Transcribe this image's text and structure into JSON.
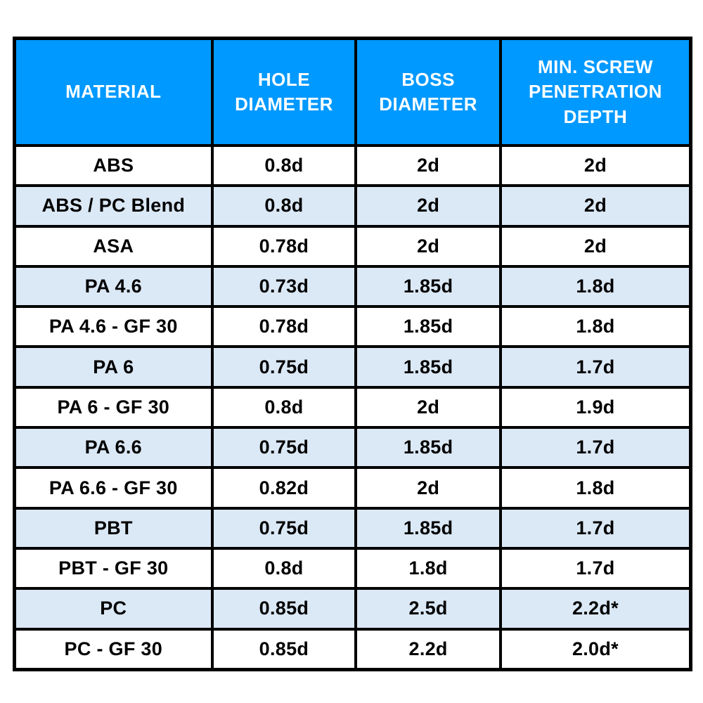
{
  "colors": {
    "header_bg": "#0099FF",
    "header_text": "#FFFFFF",
    "stripe_bg": "#DBE8F5",
    "row_bg": "#FFFFFF",
    "border_color": "#000000",
    "body_text": "#000000",
    "page_bg": "#FFFFFF"
  },
  "table": {
    "headers": [
      "MATERIAL",
      "HOLE\nDIAMETER",
      "BOSS\nDIAMETER",
      "MIN. SCREW\nPENETRATION\nDEPTH"
    ],
    "rows": [
      {
        "material": "ABS",
        "hole": "0.8d",
        "boss": "2d",
        "depth": "2d"
      },
      {
        "material": "ABS / PC Blend",
        "hole": "0.8d",
        "boss": "2d",
        "depth": "2d"
      },
      {
        "material": "ASA",
        "hole": "0.78d",
        "boss": "2d",
        "depth": "2d"
      },
      {
        "material": "PA 4.6",
        "hole": "0.73d",
        "boss": "1.85d",
        "depth": "1.8d"
      },
      {
        "material": "PA 4.6 - GF 30",
        "hole": "0.78d",
        "boss": "1.85d",
        "depth": "1.8d"
      },
      {
        "material": "PA 6",
        "hole": "0.75d",
        "boss": "1.85d",
        "depth": "1.7d"
      },
      {
        "material": "PA 6 - GF 30",
        "hole": "0.8d",
        "boss": "2d",
        "depth": "1.9d"
      },
      {
        "material": "PA 6.6",
        "hole": "0.75d",
        "boss": "1.85d",
        "depth": "1.7d"
      },
      {
        "material": "PA 6.6 - GF 30",
        "hole": "0.82d",
        "boss": "2d",
        "depth": "1.8d"
      },
      {
        "material": "PBT",
        "hole": "0.75d",
        "boss": "1.85d",
        "depth": "1.7d"
      },
      {
        "material": "PBT - GF 30",
        "hole": "0.8d",
        "boss": "1.8d",
        "depth": "1.7d"
      },
      {
        "material": "PC",
        "hole": "0.85d",
        "boss": "2.5d",
        "depth": "2.2d*"
      },
      {
        "material": "PC - GF 30",
        "hole": "0.85d",
        "boss": "2.2d",
        "depth": "2.0d*"
      }
    ]
  }
}
